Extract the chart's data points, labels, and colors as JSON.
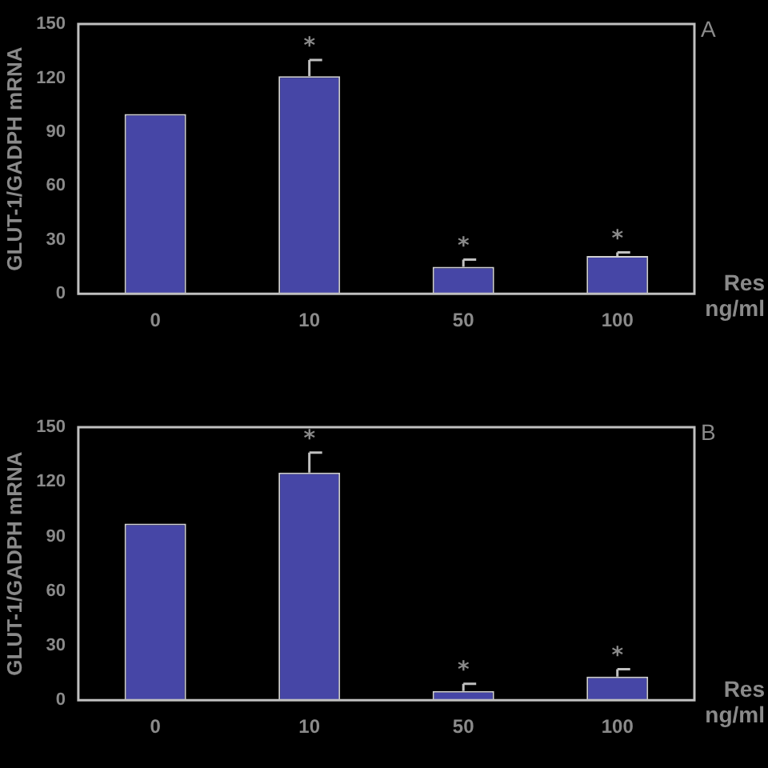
{
  "chart_data": [
    {
      "type": "bar",
      "title": "A",
      "ylabel": "GLUT-1/GADPH mRNA",
      "xlabel": "Res ng/ml",
      "categories": [
        "0",
        "10",
        "50",
        "100"
      ],
      "values": [
        100,
        121,
        15,
        21
      ],
      "errors": [
        null,
        [
          121,
          130
        ],
        [
          15,
          19
        ],
        [
          21,
          23
        ]
      ],
      "color": "#4646a6",
      "ylim": [
        0,
        150
      ],
      "yticks": [
        0,
        30,
        60,
        90,
        120,
        150
      ],
      "grid": false,
      "legend": false,
      "annotations": [
        "*",
        "*",
        "*"
      ]
    },
    {
      "type": "bar",
      "title": "B",
      "ylabel": "GLUT-1/GADPH mRNA",
      "xlabel": "Res ng/ml",
      "categories": [
        "0",
        "10",
        "50",
        "100"
      ],
      "values": [
        97,
        125,
        5,
        13
      ],
      "errors": [
        null,
        [
          125,
          136
        ],
        [
          5,
          9
        ],
        [
          13,
          17
        ]
      ],
      "color": "#4646a6",
      "ylim": [
        0,
        150
      ],
      "yticks": [
        0,
        30,
        60,
        90,
        120,
        150
      ],
      "grid": false,
      "legend": false,
      "annotations": [
        "*",
        "*",
        "*"
      ]
    }
  ]
}
